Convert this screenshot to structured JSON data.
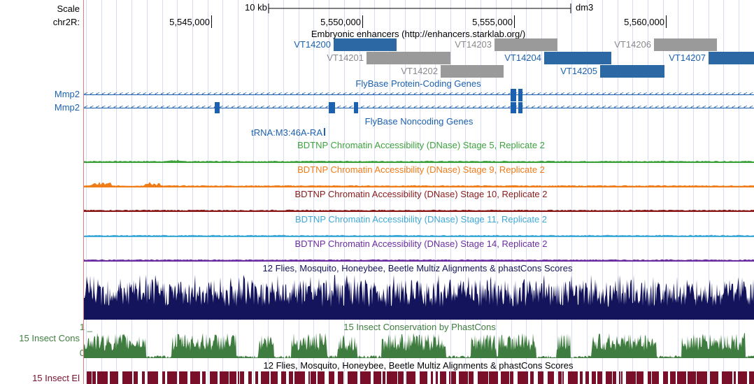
{
  "left_labels": {
    "scale": "Scale",
    "chrom": "chr2R:",
    "gene1": "Mmp2",
    "gene2": "Mmp2",
    "insect_cons": "15 Insect Cons",
    "cons_max": "1 _",
    "cons_min": "0 _",
    "insect_el": "15 Insect El"
  },
  "ruler": {
    "scale_text": "10 kb",
    "assembly": "dm3",
    "ticks": [
      "5,545,000",
      "5,550,000",
      "5,555,000",
      "5,560,000"
    ]
  },
  "tracks": {
    "enhancers": {
      "title": "Embryonic enhancers (http://enhancers.starklab.org/)",
      "items": [
        {
          "name": "VT14200",
          "color": "#2c68a3",
          "label_color": "#1c61b0"
        },
        {
          "name": "VT14201",
          "color": "#9a9a9a",
          "label_color": "#8a8a8a"
        },
        {
          "name": "VT14202",
          "color": "#9a9a9a",
          "label_color": "#8a8a8a"
        },
        {
          "name": "VT14203",
          "color": "#9a9a9a",
          "label_color": "#8a8a8a"
        },
        {
          "name": "VT14204",
          "color": "#2c68a3",
          "label_color": "#1c61b0"
        },
        {
          "name": "VT14205",
          "color": "#2c68a3",
          "label_color": "#1c61b0"
        },
        {
          "name": "VT14206",
          "color": "#9a9a9a",
          "label_color": "#8a8a8a"
        },
        {
          "name": "VT14207",
          "color": "#2c68a3",
          "label_color": "#1c61b0"
        }
      ]
    },
    "protein_coding": {
      "title": "FlyBase Protein-Coding Genes",
      "color": "#1c61b0"
    },
    "noncoding": {
      "title": "FlyBase Noncoding Genes",
      "item": "tRNA:M3:46A-RA",
      "color": "#1c61b0"
    },
    "dnase": [
      {
        "title": "BDTNP Chromatin Accessibility (DNase) Stage 5, Replicate 2",
        "color": "#3ea33e"
      },
      {
        "title": "BDTNP Chromatin Accessibility (DNase) Stage 9, Replicate 2",
        "color": "#f07c18"
      },
      {
        "title": "BDTNP Chromatin Accessibility (DNase) Stage 10, Replicate 2",
        "color": "#8b1a1a"
      },
      {
        "title": "BDTNP Chromatin Accessibility (DNase) Stage 11, Replicate 2",
        "color": "#3fa9d8"
      },
      {
        "title": "BDTNP Chromatin Accessibility (DNase) Stage 14, Replicate 2",
        "color": "#6a2ea0"
      }
    ],
    "multiz": {
      "title": "12 Flies, Mosquito, Honeybee, Beetle Multiz Alignments & phastCons Scores",
      "color": "#14145c"
    },
    "phastcons": {
      "title": "15 Insect Conservation by PhastCons",
      "color": "#3f7c3f"
    },
    "elements": {
      "title": "12 Flies, Mosquito, Honeybee, Beetle Multiz Alignments & phastCons Scores",
      "color": "#7a0f2a"
    }
  }
}
